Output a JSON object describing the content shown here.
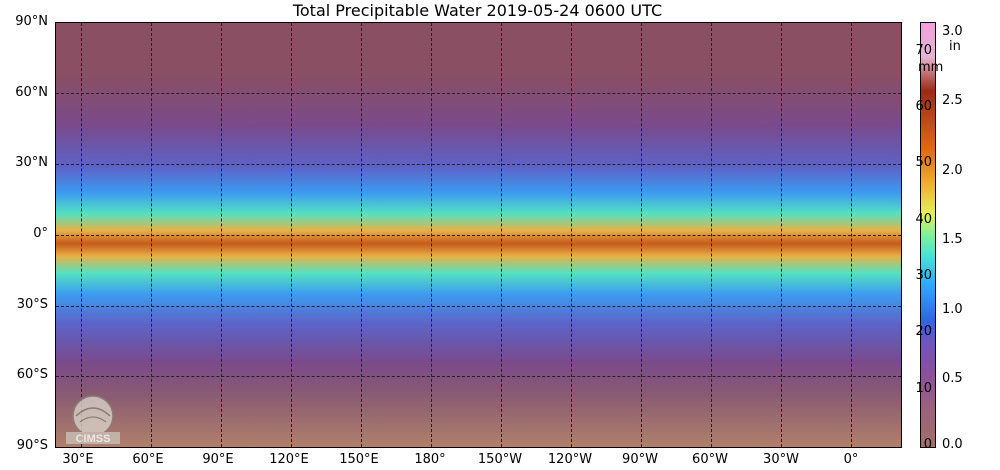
{
  "title": "Total Precipitable Water  2019-05-24 0600 UTC",
  "latitude_labels": [
    "90°N",
    "60°N",
    "30°N",
    "0°",
    "30°S",
    "60°S",
    "90°S"
  ],
  "longitude_labels": [
    "30°E",
    "60°E",
    "90°E",
    "120°E",
    "150°E",
    "180°",
    "150°W",
    "120°W",
    "90°W",
    "60°W",
    "30°W",
    "0°"
  ],
  "colorbar": {
    "mm_ticks": [
      "70",
      "60",
      "50",
      "40",
      "30",
      "20",
      "10",
      "0"
    ],
    "mm_unit": "mm",
    "in_ticks": [
      "3.0",
      "2.5",
      "2.0",
      "1.5",
      "1.0",
      "0.5",
      "0.0"
    ],
    "in_unit": "in"
  },
  "logo_text": "CIMSS",
  "colors": {
    "background": "#ffffff",
    "grid": "#222222",
    "dry": "#8a4f63",
    "moist": "#c75a1c"
  }
}
